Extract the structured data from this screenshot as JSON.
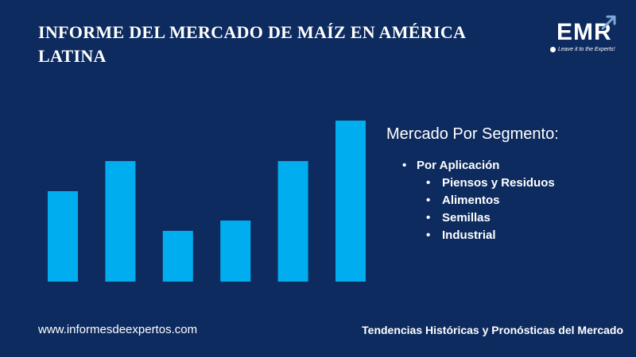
{
  "header": {
    "title": "INFORME DEL MERCADO DE MAÍZ EN AMÉRICA LATINA"
  },
  "logo": {
    "text": "EMR",
    "slogan": "Leave it to the Experts!",
    "icon": "arrow-up-right-icon"
  },
  "chart_data": {
    "type": "bar",
    "categories": [
      "",
      "",
      "",
      "",
      "",
      ""
    ],
    "values": [
      114,
      152,
      64,
      77,
      152,
      203
    ],
    "ylim": [
      0,
      215
    ],
    "grid": false,
    "legend": "none",
    "bar_color": "#00adef",
    "title": "",
    "xlabel": "",
    "ylabel": ""
  },
  "segment": {
    "heading": "Mercado Por Segmento:",
    "items": [
      {
        "label": "Por Aplicación",
        "level": 0
      },
      {
        "label": "Piensos y Residuos",
        "level": 1
      },
      {
        "label": "Alimentos",
        "level": 1
      },
      {
        "label": "Semillas",
        "level": 1
      },
      {
        "label": "Industrial",
        "level": 1
      }
    ]
  },
  "footer": {
    "url": "www.informesdeexpertos.com",
    "tagline": "Tendencias Históricas y Pronósticas del Mercado"
  },
  "colors": {
    "background": "#0d2b5f",
    "accent": "#00adef",
    "text": "#ffffff"
  }
}
